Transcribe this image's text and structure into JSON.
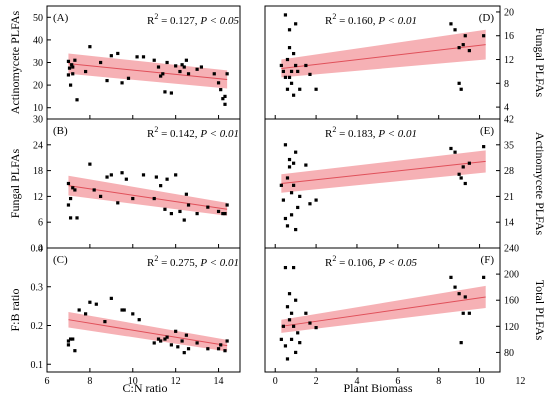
{
  "figure": {
    "bottom_labels": {
      "left": "C:N ratio",
      "right": "Plant Biomass"
    }
  },
  "chart_data": [
    {
      "type": "scatter",
      "panel": "(A)",
      "ylabel": "Actinomycete PLFAs",
      "xlabel": "C:N ratio",
      "annotation_r2": "0.127",
      "annotation_p": "P < 0.05",
      "xlim": [
        6,
        15
      ],
      "ylim": [
        5,
        55
      ],
      "x_ticks": [
        6,
        8,
        10,
        12,
        14
      ],
      "y_ticks": [
        10,
        20,
        30,
        40,
        50
      ],
      "fit": {
        "x": [
          7,
          14.4
        ],
        "y": [
          29.5,
          22.5
        ],
        "band_lower": [
          25,
          18.5
        ],
        "band_upper": [
          34,
          26.5
        ]
      },
      "x": [
        7.0,
        7.0,
        7.05,
        7.1,
        7.15,
        7.2,
        7.2,
        7.3,
        7.4,
        7.8,
        8.0,
        8.5,
        8.8,
        9.0,
        9.3,
        9.5,
        9.8,
        10.2,
        10.5,
        11.0,
        11.2,
        11.3,
        11.4,
        11.5,
        11.6,
        11.8,
        12.0,
        12.2,
        12.3,
        12.4,
        12.5,
        12.6,
        13.0,
        13.2,
        13.8,
        14.0,
        14.1,
        14.2,
        14.3,
        14.3,
        14.4
      ],
      "y": [
        24.5,
        30.5,
        27.5,
        20,
        29,
        28,
        25,
        31,
        13.5,
        26,
        37,
        30,
        22,
        33,
        34,
        21,
        23,
        32.5,
        32.5,
        31,
        28,
        24,
        25,
        17,
        30,
        16.5,
        28.5,
        26,
        29,
        28,
        31,
        25,
        27,
        28,
        25,
        21,
        18,
        14,
        15,
        11.5,
        25
      ]
    },
    {
      "type": "scatter",
      "panel": "(B)",
      "ylabel": "Fungal PLFAs",
      "xlabel": "C:N ratio",
      "annotation_r2": "0.142",
      "annotation_p": "P < 0.01",
      "xlim": [
        6,
        15
      ],
      "ylim": [
        0,
        30
      ],
      "x_ticks": [
        6,
        8,
        10,
        12,
        14
      ],
      "y_ticks": [
        0,
        6,
        12,
        18,
        24,
        30
      ],
      "fit": {
        "x": [
          7,
          14.4
        ],
        "y": [
          14.5,
          9
        ],
        "band_lower": [
          12.2,
          7.5
        ],
        "band_upper": [
          16.8,
          10.5
        ]
      },
      "x": [
        7.0,
        7.0,
        7.1,
        7.1,
        7.2,
        7.3,
        7.4,
        8.0,
        8.2,
        8.5,
        8.8,
        9.0,
        9.3,
        9.5,
        9.7,
        10.0,
        10.5,
        11.0,
        11.1,
        11.3,
        11.5,
        11.6,
        11.8,
        12.0,
        12.2,
        12.4,
        12.5,
        12.6,
        13.0,
        13.5,
        14.0,
        14.2,
        14.3,
        14.4
      ],
      "y": [
        10,
        15,
        11.5,
        7,
        14,
        13.5,
        7,
        19.5,
        13.5,
        12,
        16.5,
        17,
        10.5,
        17.5,
        16,
        11.5,
        17,
        11.5,
        16.5,
        14.5,
        9,
        16,
        8,
        17,
        8.5,
        6.5,
        12.5,
        10,
        8,
        9.5,
        8.5,
        8,
        8,
        10
      ]
    },
    {
      "type": "scatter",
      "panel": "(C)",
      "ylabel": "F:B ratio",
      "xlabel": "C:N ratio",
      "annotation_r2": "0.275",
      "annotation_p": "P < 0.01",
      "xlim": [
        6,
        15
      ],
      "ylim": [
        0.08,
        0.4
      ],
      "x_ticks": [
        6,
        8,
        10,
        12,
        14
      ],
      "y_ticks": [
        0.1,
        0.2,
        0.3,
        0.4
      ],
      "x_tick_labels": [
        "6",
        "8",
        "10",
        "12",
        "14"
      ],
      "fit": {
        "x": [
          7,
          14.4
        ],
        "y": [
          0.215,
          0.148
        ],
        "band_lower": [
          0.195,
          0.133
        ],
        "band_upper": [
          0.235,
          0.163
        ]
      },
      "x": [
        7.0,
        7.0,
        7.1,
        7.2,
        7.3,
        7.5,
        7.8,
        8.0,
        8.3,
        8.7,
        9.0,
        9.5,
        9.6,
        10.0,
        10.3,
        11.0,
        11.2,
        11.3,
        11.5,
        11.6,
        11.8,
        12.0,
        12.1,
        12.3,
        12.4,
        12.5,
        12.6,
        13.0,
        13.5,
        14.0,
        14.1,
        14.3,
        14.4
      ],
      "y": [
        0.16,
        0.15,
        0.165,
        0.165,
        0.135,
        0.24,
        0.23,
        0.26,
        0.255,
        0.21,
        0.27,
        0.24,
        0.24,
        0.23,
        0.215,
        0.155,
        0.165,
        0.16,
        0.165,
        0.17,
        0.15,
        0.185,
        0.145,
        0.16,
        0.13,
        0.175,
        0.14,
        0.155,
        0.14,
        0.14,
        0.15,
        0.135,
        0.16
      ]
    },
    {
      "type": "scatter",
      "panel": "(D)",
      "ylabel": "Fungal PLFAs",
      "xlabel": "Plant Biomass",
      "annotation_r2": "0.160",
      "annotation_p": "P < 0.01",
      "xlim": [
        -0.5,
        11
      ],
      "ylim": [
        2,
        21
      ],
      "x_ticks": [
        0,
        2,
        4,
        6,
        8,
        10,
        12
      ],
      "y_ticks": [
        4,
        8,
        12,
        16,
        20
      ],
      "fit": {
        "x": [
          0.3,
          10.3
        ],
        "y": [
          10.5,
          14.5
        ],
        "band_lower": [
          9,
          12
        ],
        "band_upper": [
          12,
          17
        ]
      },
      "x": [
        0.3,
        0.4,
        0.5,
        0.5,
        0.6,
        0.6,
        0.7,
        0.7,
        0.7,
        0.8,
        0.8,
        0.9,
        0.9,
        1.0,
        1.0,
        1.1,
        1.2,
        1.5,
        1.7,
        2.0,
        8.6,
        8.8,
        9.0,
        9.0,
        9.1,
        9.2,
        9.3,
        9.5,
        10.2
      ],
      "y": [
        11,
        10,
        9,
        19.5,
        7,
        12,
        14,
        17,
        9,
        10,
        8,
        6,
        13,
        18,
        11,
        10,
        7,
        11,
        9.5,
        7,
        18,
        17,
        14,
        8,
        7,
        14.5,
        16,
        13.5,
        16
      ]
    },
    {
      "type": "scatter",
      "panel": "(E)",
      "ylabel": "Actinomycete PLFAs",
      "xlabel": "Plant Biomass",
      "annotation_r2": "0.183",
      "annotation_p": "P < 0.01",
      "xlim": [
        -0.5,
        11
      ],
      "ylim": [
        7,
        42
      ],
      "x_ticks": [
        0,
        2,
        4,
        6,
        8,
        10,
        12
      ],
      "y_ticks": [
        14,
        21,
        28,
        35,
        42
      ],
      "fit": {
        "x": [
          0.3,
          10.3
        ],
        "y": [
          24.5,
          30.5
        ],
        "band_lower": [
          22,
          27.5
        ],
        "band_upper": [
          27,
          33.5
        ]
      },
      "x": [
        0.3,
        0.4,
        0.5,
        0.5,
        0.6,
        0.6,
        0.7,
        0.7,
        0.8,
        0.8,
        0.9,
        0.9,
        1.0,
        1.0,
        1.1,
        1.2,
        1.5,
        1.7,
        2.0,
        8.6,
        8.8,
        9.0,
        9.1,
        9.2,
        9.3,
        9.5,
        10.2
      ],
      "y": [
        24,
        20,
        15,
        35,
        13,
        26,
        31,
        29,
        16,
        22,
        24,
        30,
        33,
        12,
        18,
        21,
        29.5,
        19,
        20,
        34,
        33,
        27,
        26,
        29,
        24.5,
        30,
        34.5
      ]
    },
    {
      "type": "scatter",
      "panel": "(F)",
      "ylabel": "Total PLFAs",
      "xlabel": "Plant Biomass",
      "annotation_r2": "0.106",
      "annotation_p": "P < 0.05",
      "xlim": [
        -0.5,
        11
      ],
      "ylim": [
        50,
        240
      ],
      "x_ticks": [
        0,
        2,
        4,
        6,
        8,
        10,
        12
      ],
      "x_tick_labels": [
        "0",
        "2",
        "4",
        "6",
        "8",
        "10",
        "12"
      ],
      "y_ticks": [
        80,
        120,
        160,
        200,
        240
      ],
      "fit": {
        "x": [
          0.3,
          10.3
        ],
        "y": [
          120,
          165
        ],
        "band_lower": [
          110,
          148
        ],
        "band_upper": [
          130,
          182
        ]
      },
      "x": [
        0.3,
        0.4,
        0.5,
        0.5,
        0.6,
        0.6,
        0.7,
        0.7,
        0.8,
        0.8,
        0.9,
        0.9,
        1.0,
        1.0,
        1.1,
        1.2,
        1.5,
        1.7,
        2.0,
        8.6,
        8.8,
        9.0,
        9.1,
        9.2,
        9.3,
        9.5,
        10.2
      ],
      "y": [
        100,
        120,
        90,
        210,
        70,
        150,
        170,
        130,
        100,
        140,
        210,
        120,
        160,
        80,
        110,
        95,
        140,
        125,
        118,
        195,
        180,
        170,
        95,
        140,
        165,
        140,
        195
      ]
    }
  ]
}
